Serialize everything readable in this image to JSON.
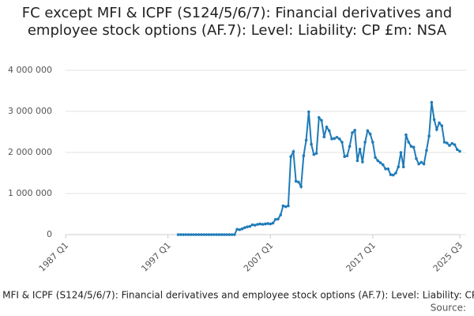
{
  "chart_data": {
    "type": "line",
    "title": "FC except MFI & ICPF (S124/5/6/7): Financial derivatives and employee stock options (AF.7): Level: Liability: CP £m: NSA",
    "source": "Source:",
    "categories": [
      "1987 Q1",
      null,
      null,
      null,
      null,
      null,
      null,
      null,
      null,
      null,
      null,
      null,
      null,
      null,
      null,
      null,
      null,
      null,
      null,
      null,
      null,
      null,
      null,
      null,
      null,
      null,
      null,
      null,
      null,
      null,
      null,
      null,
      null,
      null,
      null,
      null,
      null,
      null,
      null,
      null,
      "1997 Q1",
      null,
      null,
      null,
      null,
      null,
      null,
      null,
      null,
      null,
      null,
      null,
      null,
      null,
      null,
      null,
      null,
      null,
      null,
      null,
      null,
      null,
      null,
      null,
      null,
      null,
      null,
      null,
      null,
      null,
      null,
      null,
      null,
      null,
      null,
      null,
      null,
      null,
      null,
      null,
      "2007 Q1",
      null,
      null,
      null,
      null,
      null,
      null,
      null,
      null,
      null,
      null,
      null,
      null,
      null,
      null,
      null,
      null,
      null,
      null,
      null,
      null,
      null,
      null,
      null,
      null,
      null,
      null,
      null,
      null,
      null,
      null,
      null,
      null,
      null,
      null,
      null,
      null,
      null,
      null,
      null,
      "2017 Q1",
      null,
      null,
      null,
      null,
      null,
      null,
      null,
      null,
      null,
      null,
      null,
      null,
      null,
      null,
      null,
      null,
      null,
      null,
      null,
      null,
      null,
      null,
      null,
      null,
      null,
      null,
      null,
      null,
      null,
      null,
      null,
      null,
      null,
      "2025 Q3"
    ],
    "series": [
      {
        "name": "FC except MFI & ICPF (S124/5/6/7): Financial derivatives and employee stock options (AF.7): Level: Liability: CP £m: NSA",
        "color": "#1f7bb8",
        "values": [
          null,
          null,
          null,
          null,
          null,
          null,
          null,
          null,
          null,
          null,
          null,
          null,
          null,
          null,
          null,
          null,
          null,
          null,
          null,
          null,
          null,
          null,
          null,
          null,
          null,
          null,
          null,
          null,
          null,
          null,
          null,
          null,
          null,
          null,
          null,
          null,
          null,
          null,
          null,
          null,
          null,
          null,
          null,
          null,
          0,
          0,
          0,
          0,
          0,
          0,
          0,
          0,
          0,
          0,
          0,
          0,
          0,
          0,
          0,
          0,
          0,
          0,
          0,
          0,
          0,
          0,
          0,
          130000,
          120000,
          140000,
          170000,
          190000,
          200000,
          240000,
          230000,
          250000,
          260000,
          250000,
          260000,
          270000,
          260000,
          280000,
          370000,
          380000,
          480000,
          700000,
          680000,
          700000,
          1900000,
          2020000,
          1300000,
          1280000,
          1170000,
          1920000,
          2300000,
          2990000,
          2200000,
          1950000,
          1980000,
          2850000,
          2780000,
          2380000,
          2620000,
          2530000,
          2330000,
          2340000,
          2370000,
          2330000,
          2250000,
          1900000,
          1920000,
          2150000,
          2480000,
          2540000,
          1800000,
          2080000,
          1770000,
          2250000,
          2530000,
          2450000,
          2250000,
          1880000,
          1800000,
          1750000,
          1700000,
          1600000,
          1600000,
          1460000,
          1450000,
          1500000,
          1650000,
          2000000,
          1650000,
          2430000,
          2250000,
          2150000,
          2130000,
          1850000,
          1720000,
          1760000,
          1720000,
          2050000,
          2400000,
          3220000,
          2800000,
          2560000,
          2720000,
          2650000,
          2250000,
          2230000,
          2170000,
          2220000,
          2190000,
          2070000,
          2030000
        ]
      }
    ],
    "ylim": [
      0,
      4000000
    ],
    "yticks": [
      0,
      {
        "value": 1000000,
        "label": "1 000 000"
      },
      {
        "value": 2000000,
        "label": "2 000 000"
      },
      {
        "value": 3000000,
        "label": "3 000 000"
      },
      {
        "value": 4000000,
        "label": "4 000 000"
      }
    ],
    "grid": true
  }
}
